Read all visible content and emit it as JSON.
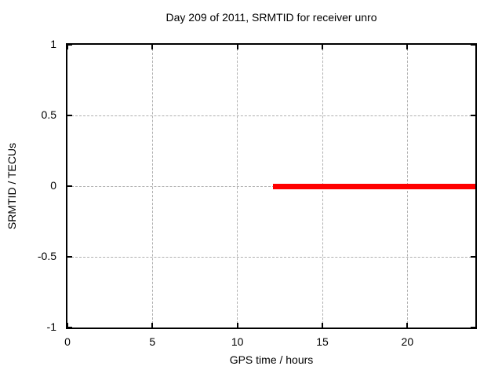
{
  "chart_data": {
    "type": "line",
    "title": "Day 209 of 2011, SRMTID for receiver unro",
    "xlabel": "GPS time / hours",
    "ylabel": "SRMTID / TECUs",
    "xlim": [
      0,
      24
    ],
    "ylim": [
      -1,
      1
    ],
    "grid": true,
    "legend": "none",
    "xticks": [
      {
        "v": 0,
        "label": "0"
      },
      {
        "v": 5,
        "label": "5"
      },
      {
        "v": 10,
        "label": "10"
      },
      {
        "v": 15,
        "label": "15"
      },
      {
        "v": 20,
        "label": "20"
      }
    ],
    "yticks": [
      {
        "v": 1,
        "label": "1"
      },
      {
        "v": 0.5,
        "label": "0.5"
      },
      {
        "v": 0,
        "label": "0"
      },
      {
        "v": -0.5,
        "label": "-0.5"
      },
      {
        "v": -1,
        "label": "-1"
      }
    ],
    "series": [
      {
        "name": "SRMTID",
        "color": "#ff0000",
        "linewidth": 7,
        "x": [
          12.1,
          24.0
        ],
        "y": [
          0,
          0
        ]
      }
    ],
    "colors": {
      "background": "#ffffff",
      "border": "#000000",
      "grid": "#b0b0b0",
      "text": "#000000",
      "series": "#ff0000"
    }
  }
}
